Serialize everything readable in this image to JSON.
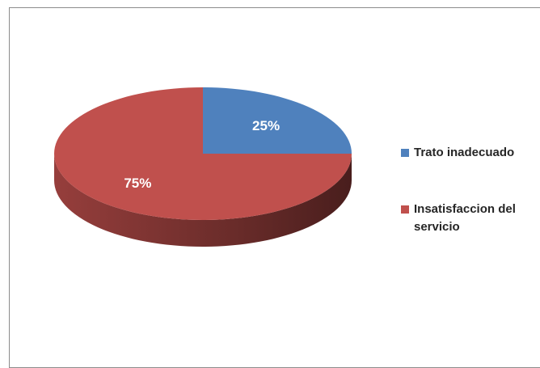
{
  "chart_data": {
    "type": "pie",
    "three_d": true,
    "categories": [
      "Trato inadecuado",
      "Insatisfaccion del servicio"
    ],
    "values": [
      25,
      75
    ],
    "data_labels": [
      "25%",
      "75%"
    ],
    "colors": [
      "#4f81bd",
      "#c0504d"
    ],
    "legend_position": "right"
  }
}
